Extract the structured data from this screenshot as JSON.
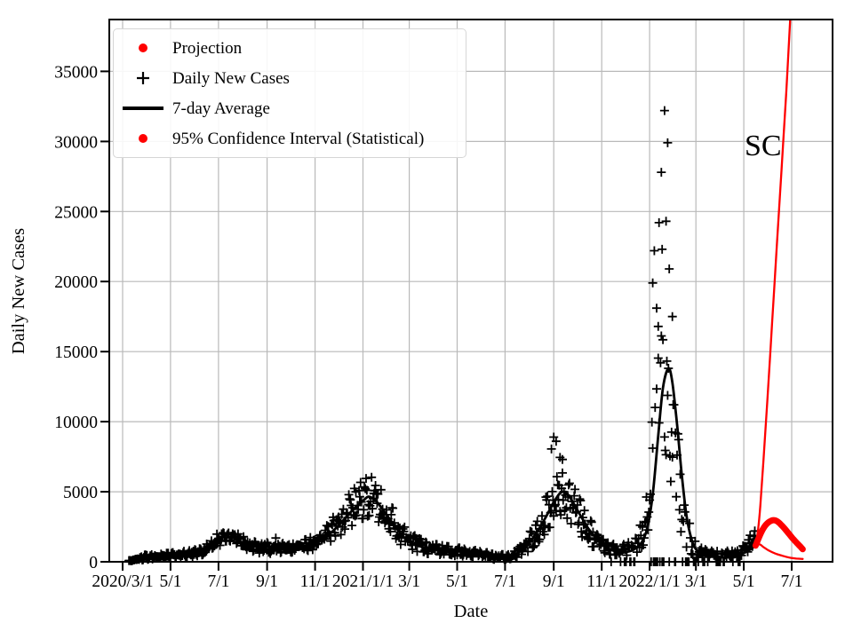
{
  "legend": {
    "items": [
      {
        "marker": "dot",
        "color": "#ff0000",
        "label": "Projection"
      },
      {
        "marker": "plus",
        "color": "#000000",
        "label": "Daily New Cases"
      },
      {
        "marker": "line",
        "color": "#000000",
        "label": "7-day Average"
      },
      {
        "marker": "dot",
        "color": "#ff0000",
        "label": "95% Confidence Interval (Statistical)"
      }
    ]
  },
  "chart_data": {
    "type": "scatter",
    "title": "",
    "xlabel": "Date",
    "ylabel": "Daily New Cases",
    "x_unit": "days since 2020/3/1",
    "xlim": [
      -17,
      904
    ],
    "ylim": [
      0,
      38700
    ],
    "grid": true,
    "legend_position": "upper left",
    "colors": {
      "grid": "#b9b9b9",
      "data": "#000000",
      "projection": "#ff0000",
      "background": "#ffffff"
    },
    "x_ticks": [
      {
        "label": "2020/3/1",
        "day": 0
      },
      {
        "label": "5/1",
        "day": 61
      },
      {
        "label": "7/1",
        "day": 122
      },
      {
        "label": "9/1",
        "day": 184
      },
      {
        "label": "11/1",
        "day": 245
      },
      {
        "label": "2021/1/1",
        "day": 306
      },
      {
        "label": "3/1",
        "day": 365
      },
      {
        "label": "5/1",
        "day": 426
      },
      {
        "label": "7/1",
        "day": 487
      },
      {
        "label": "9/1",
        "day": 549
      },
      {
        "label": "11/1",
        "day": 610
      },
      {
        "label": "2022/1/1",
        "day": 671
      },
      {
        "label": "3/1",
        "day": 730
      },
      {
        "label": "5/1",
        "day": 791
      },
      {
        "label": "7/1",
        "day": 852
      }
    ],
    "y_ticks": [
      0,
      5000,
      10000,
      15000,
      20000,
      25000,
      30000,
      35000
    ],
    "annotations": [
      {
        "text": "SC",
        "day": 792,
        "value": 29000,
        "font_size": 34,
        "color": "#000000"
      }
    ],
    "series": {
      "daily_new_cases": {
        "name": "Daily New Cases",
        "marker": "plus",
        "color": "#000000",
        "seed": 2024,
        "envelope": [
          [
            8,
            0,
            90
          ],
          [
            30,
            160,
            520
          ],
          [
            61,
            260,
            640
          ],
          [
            90,
            360,
            830
          ],
          [
            105,
            520,
            1150
          ],
          [
            118,
            900,
            1900
          ],
          [
            131,
            1450,
            2400
          ],
          [
            141,
            1450,
            2300
          ],
          [
            152,
            1000,
            1850
          ],
          [
            166,
            650,
            1450
          ],
          [
            184,
            560,
            1380
          ],
          [
            205,
            620,
            1320
          ],
          [
            228,
            700,
            1480
          ],
          [
            248,
            900,
            1950
          ],
          [
            263,
            1250,
            2750
          ],
          [
            280,
            1900,
            4200
          ],
          [
            295,
            2700,
            5300
          ],
          [
            308,
            3100,
            5900
          ],
          [
            316,
            3300,
            6100
          ],
          [
            326,
            2800,
            5400
          ],
          [
            340,
            2000,
            4200
          ],
          [
            354,
            1200,
            2900
          ],
          [
            368,
            800,
            2000
          ],
          [
            388,
            560,
            1350
          ],
          [
            412,
            460,
            1120
          ],
          [
            438,
            340,
            930
          ],
          [
            460,
            240,
            720
          ],
          [
            478,
            130,
            480
          ],
          [
            495,
            210,
            640
          ],
          [
            512,
            520,
            1500
          ],
          [
            528,
            1250,
            3200
          ],
          [
            542,
            2250,
            5000
          ],
          [
            554,
            3200,
            6600
          ],
          [
            563,
            3100,
            6300
          ],
          [
            574,
            2500,
            5400
          ],
          [
            587,
            1600,
            3900
          ],
          [
            601,
            900,
            2400
          ],
          [
            616,
            580,
            1550
          ],
          [
            631,
            370,
            1080
          ],
          [
            645,
            470,
            1400
          ],
          [
            658,
            720,
            2300
          ],
          [
            666,
            1400,
            4800
          ],
          [
            673,
            3200,
            10800
          ],
          [
            679,
            6000,
            15400
          ],
          [
            685,
            7800,
            16400
          ],
          [
            691,
            7800,
            15300
          ],
          [
            697,
            5900,
            14300
          ],
          [
            703,
            3900,
            10800
          ],
          [
            709,
            2400,
            8300
          ],
          [
            716,
            1150,
            4800
          ],
          [
            723,
            580,
            2400
          ],
          [
            731,
            300,
            1150
          ],
          [
            746,
            200,
            780
          ],
          [
            762,
            240,
            740
          ],
          [
            777,
            300,
            900
          ],
          [
            790,
            460,
            1380
          ],
          [
            800,
            700,
            1950
          ],
          [
            806,
            950,
            2250
          ]
        ],
        "outliers": [
          [
            195,
            1700
          ],
          [
            546,
            8050
          ],
          [
            549,
            8900
          ],
          [
            552,
            8600
          ],
          [
            557,
            7450
          ],
          [
            560,
            7300
          ],
          [
            675,
            19900
          ],
          [
            677,
            22200
          ],
          [
            680,
            18100
          ],
          [
            682,
            16800
          ],
          [
            683,
            24200
          ],
          [
            686,
            27800
          ],
          [
            687,
            22300
          ],
          [
            690,
            32200
          ],
          [
            692,
            24300
          ],
          [
            694,
            29900
          ],
          [
            696,
            20900
          ],
          [
            700,
            17500
          ],
          [
            704,
            9200
          ]
        ],
        "zero_report_days": {
          "ranges": [
            [
              620,
              790
            ]
          ],
          "fraction": 0.22
        }
      },
      "seven_day_average": {
        "name": "7-day Average",
        "color": "#000000",
        "line_width": 2.8,
        "points": [
          [
            14,
            60
          ],
          [
            30,
            220
          ],
          [
            45,
            380
          ],
          [
            61,
            430
          ],
          [
            80,
            520
          ],
          [
            95,
            600
          ],
          [
            108,
            850
          ],
          [
            120,
            1350
          ],
          [
            130,
            1850
          ],
          [
            138,
            2060
          ],
          [
            147,
            1900
          ],
          [
            158,
            1450
          ],
          [
            170,
            1080
          ],
          [
            184,
            880
          ],
          [
            200,
            960
          ],
          [
            218,
            1060
          ],
          [
            235,
            1180
          ],
          [
            250,
            1450
          ],
          [
            265,
            2050
          ],
          [
            280,
            2900
          ],
          [
            293,
            3700
          ],
          [
            306,
            4350
          ],
          [
            314,
            4650
          ],
          [
            324,
            4250
          ],
          [
            338,
            3200
          ],
          [
            352,
            2150
          ],
          [
            365,
            1400
          ],
          [
            382,
            1050
          ],
          [
            400,
            900
          ],
          [
            420,
            780
          ],
          [
            440,
            660
          ],
          [
            458,
            500
          ],
          [
            472,
            380
          ],
          [
            487,
            380
          ],
          [
            500,
            550
          ],
          [
            512,
            1000
          ],
          [
            525,
            1900
          ],
          [
            538,
            3100
          ],
          [
            550,
            4350
          ],
          [
            560,
            5000
          ],
          [
            570,
            4550
          ],
          [
            582,
            3400
          ],
          [
            594,
            2300
          ],
          [
            607,
            1450
          ],
          [
            620,
            900
          ],
          [
            634,
            700
          ],
          [
            648,
            800
          ],
          [
            660,
            1300
          ],
          [
            668,
            2400
          ],
          [
            675,
            4800
          ],
          [
            682,
            9000
          ],
          [
            688,
            12400
          ],
          [
            695,
            13800
          ],
          [
            700,
            12800
          ],
          [
            706,
            9800
          ],
          [
            712,
            6200
          ],
          [
            718,
            3300
          ],
          [
            724,
            1700
          ],
          [
            730,
            900
          ],
          [
            742,
            500
          ],
          [
            756,
            350
          ],
          [
            770,
            320
          ],
          [
            782,
            420
          ],
          [
            794,
            700
          ],
          [
            806,
            1150
          ]
        ]
      },
      "projection": {
        "name": "Projection",
        "color": "#ff0000",
        "line_width": 7,
        "points": [
          [
            806,
            1150
          ],
          [
            810,
            1700
          ],
          [
            815,
            2300
          ],
          [
            820,
            2700
          ],
          [
            826,
            2930
          ],
          [
            831,
            2950
          ],
          [
            836,
            2780
          ],
          [
            842,
            2430
          ],
          [
            848,
            2030
          ],
          [
            854,
            1620
          ],
          [
            859,
            1320
          ],
          [
            863,
            1080
          ],
          [
            866,
            900
          ]
        ]
      },
      "ci_upper": {
        "name": "95% Confidence Interval (Statistical) upper",
        "color": "#ff0000",
        "line_width": 2.3,
        "points": [
          [
            806,
            1150
          ],
          [
            809,
            2200
          ],
          [
            812,
            4000
          ],
          [
            816,
            7200
          ],
          [
            821,
            11500
          ],
          [
            827,
            17000
          ],
          [
            833,
            22500
          ],
          [
            839,
            28000
          ],
          [
            845,
            33500
          ],
          [
            850,
            38700
          ],
          [
            852,
            40500
          ]
        ]
      },
      "ci_lower": {
        "name": "95% Confidence Interval (Statistical) lower",
        "color": "#ff0000",
        "line_width": 2.3,
        "points": [
          [
            806,
            1150
          ],
          [
            811,
            1250
          ],
          [
            816,
            1050
          ],
          [
            823,
            800
          ],
          [
            831,
            590
          ],
          [
            840,
            430
          ],
          [
            849,
            300
          ],
          [
            858,
            230
          ],
          [
            866,
            200
          ]
        ]
      }
    }
  }
}
